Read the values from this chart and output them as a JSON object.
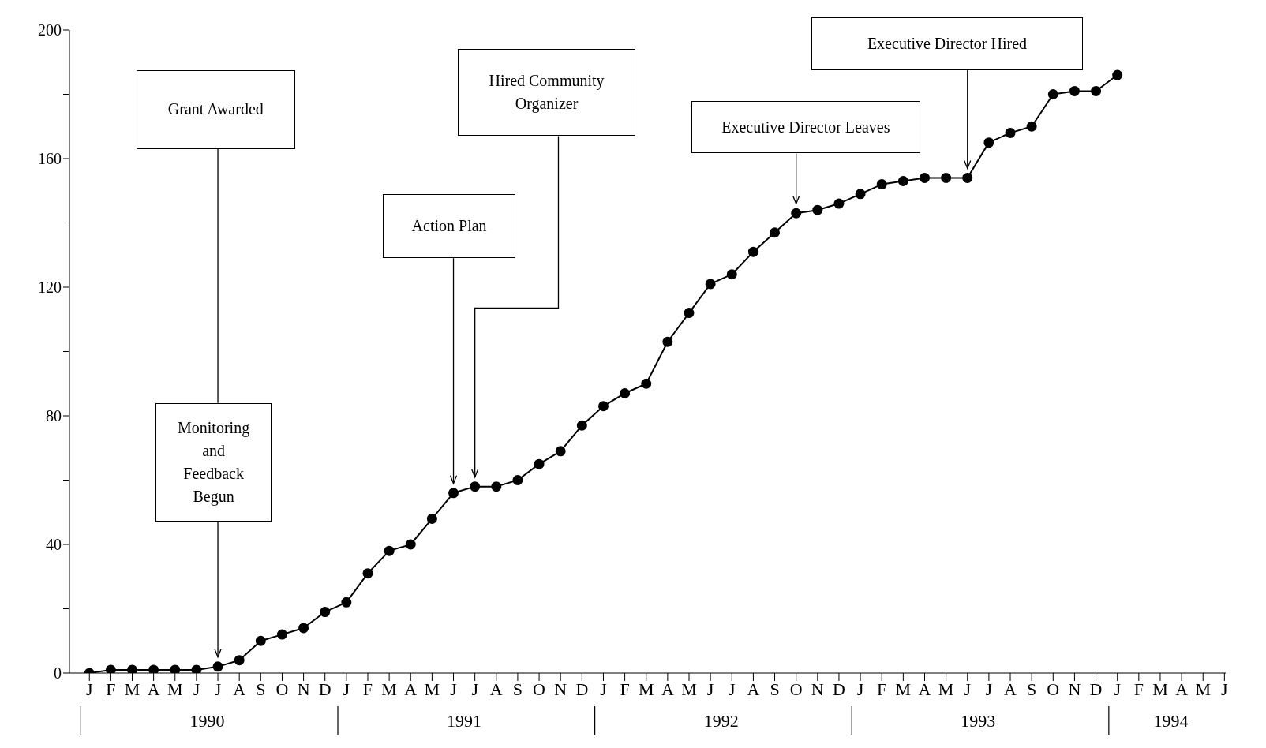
{
  "chart_data": {
    "type": "line",
    "categories": [
      "J",
      "F",
      "M",
      "A",
      "M",
      "J",
      "J",
      "A",
      "S",
      "O",
      "N",
      "D",
      "J",
      "F",
      "M",
      "A",
      "M",
      "J",
      "J",
      "A",
      "S",
      "O",
      "N",
      "D",
      "J",
      "F",
      "M",
      "A",
      "M",
      "J",
      "J",
      "A",
      "S",
      "O",
      "N",
      "D",
      "J",
      "F",
      "M",
      "A",
      "M",
      "J",
      "J",
      "A",
      "S",
      "O",
      "N",
      "D",
      "J",
      "F",
      "M",
      "A",
      "M",
      "J"
    ],
    "series": [
      {
        "color": "#000000",
        "values": [
          0,
          1,
          1,
          1,
          1,
          1,
          2,
          4,
          10,
          12,
          14,
          19,
          22,
          31,
          38,
          40,
          48,
          56,
          58,
          58,
          60,
          65,
          69,
          77,
          83,
          87,
          90,
          103,
          112,
          121,
          124,
          131,
          137,
          143,
          144,
          146,
          149,
          152,
          153,
          154,
          154,
          154,
          165,
          168,
          170,
          180,
          181,
          181,
          186,
          null,
          null,
          null,
          null,
          null
        ]
      }
    ],
    "ylim": [
      0,
      200
    ],
    "yticks": [
      0,
      {
        "value": 20,
        "label": null
      },
      40,
      {
        "value": 60,
        "label": null
      },
      80,
      {
        "value": 100,
        "label": null
      },
      120,
      {
        "value": 140,
        "label": null
      },
      160,
      {
        "value": 180,
        "label": null
      },
      200
    ],
    "grid": false,
    "legend": false,
    "marker": "circle",
    "line_style": "solid",
    "annotations": [
      "Grant Awarded",
      "Monitoring and Feedback Begun",
      "Action Plan",
      "Hired Community Organizer",
      "Executive Director Leaves",
      "Executive Director Hired",
      "1990",
      "1991",
      "1992",
      "1993",
      "1994"
    ]
  }
}
